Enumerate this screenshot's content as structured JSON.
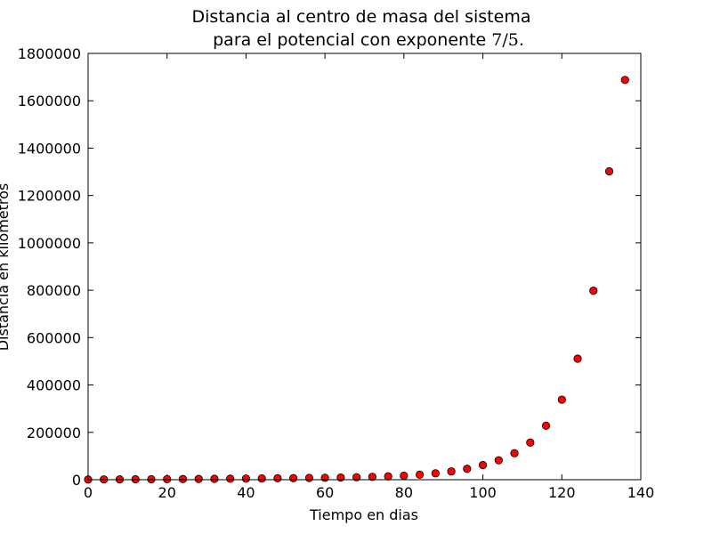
{
  "chart_data": {
    "type": "scatter",
    "title_line1": "Distancia al centro de masa del sistema",
    "title_line2_prefix": "para el potencial con exponente ",
    "title_line2_math": "7/5",
    "title_line2_suffix": ".",
    "xlabel": "Tiempo en dias",
    "ylabel": "Distancia en kilometros",
    "xlim": [
      0,
      140
    ],
    "ylim": [
      0,
      1800000
    ],
    "xticks": [
      "0",
      "20",
      "40",
      "60",
      "80",
      "100",
      "120",
      "140"
    ],
    "yticks": [
      "0",
      "200000",
      "400000",
      "600000",
      "800000",
      "1000000",
      "1200000",
      "1400000",
      "1600000",
      "1800000"
    ],
    "grid": false,
    "marker_color": "#ff0000",
    "marker_edge": "#000000",
    "x": [
      0,
      4,
      8,
      12,
      16,
      20,
      24,
      28,
      32,
      36,
      40,
      44,
      48,
      52,
      56,
      60,
      64,
      68,
      72,
      76,
      80,
      84,
      88,
      92,
      96,
      100,
      104,
      108,
      112,
      116,
      120,
      124,
      128,
      132,
      136
    ],
    "y": [
      1000,
      1200,
      1500,
      1800,
      2100,
      2400,
      2800,
      3200,
      3700,
      4200,
      4800,
      5400,
      6000,
      6700,
      7400,
      8200,
      9200,
      10500,
      12000,
      14000,
      17000,
      21000,
      27000,
      35000,
      46000,
      62000,
      82000,
      112000,
      157000,
      228000,
      338000,
      511000,
      798000,
      1302000,
      1688000
    ]
  }
}
